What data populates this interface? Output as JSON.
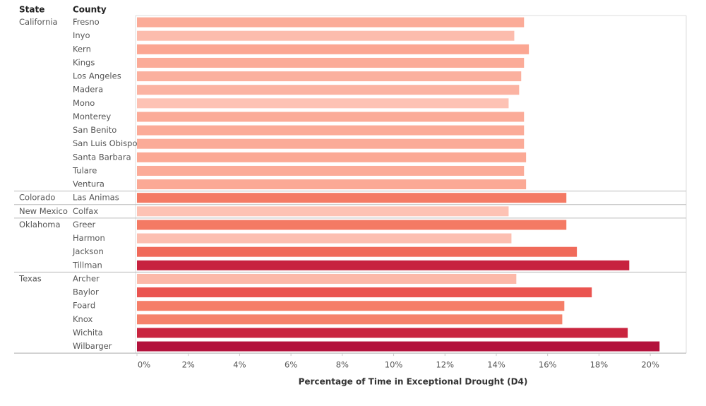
{
  "chart_data": {
    "type": "bar",
    "orientation": "horizontal",
    "row_headers": [
      "State",
      "County"
    ],
    "x_label": "Percentage of Time in Exceptional Drought (D4)",
    "xlim": [
      0,
      21.4
    ],
    "xticks": [
      {
        "value": 0,
        "label": "0%"
      },
      {
        "value": 2,
        "label": "2%"
      },
      {
        "value": 4,
        "label": "4%"
      },
      {
        "value": 6,
        "label": "6%"
      },
      {
        "value": 8,
        "label": "8%"
      },
      {
        "value": 10,
        "label": "10%"
      },
      {
        "value": 12,
        "label": "12%"
      },
      {
        "value": 14,
        "label": "14%"
      },
      {
        "value": 16,
        "label": "16%"
      },
      {
        "value": 18,
        "label": "18%"
      },
      {
        "value": 20,
        "label": "20%"
      }
    ],
    "groups": [
      {
        "name": "California",
        "categories": [
          "Fresno",
          "Inyo",
          "Kern",
          "Kings",
          "Los Angeles",
          "Madera",
          "Mono",
          "Monterey",
          "San Benito",
          "San Luis Obispo",
          "Santa Barbara",
          "Tulare",
          "Ventura"
        ],
        "values": [
          15.08,
          14.7,
          15.27,
          15.08,
          14.97,
          14.89,
          14.48,
          15.08,
          15.08,
          15.08,
          15.16,
          15.08,
          15.16
        ],
        "colors": [
          "#fbab98",
          "#fcbcad",
          "#fba692",
          "#fbab98",
          "#fbb09e",
          "#fbb3a2",
          "#fdc2b4",
          "#fbab98",
          "#fbab98",
          "#fbab98",
          "#fba995",
          "#fbab98",
          "#fba995"
        ]
      },
      {
        "name": "Colorado",
        "categories": [
          "Las Animas"
        ],
        "values": [
          16.73
        ],
        "colors": [
          "#f47a64"
        ]
      },
      {
        "name": "New Mexico",
        "categories": [
          "Colfax"
        ],
        "values": [
          14.48
        ],
        "colors": [
          "#fdc2b4"
        ]
      },
      {
        "name": "Oklahoma",
        "categories": [
          "Greer",
          "Harmon",
          "Jackson",
          "Tillman"
        ],
        "values": [
          16.73,
          14.59,
          17.14,
          19.18
        ],
        "colors": [
          "#f47a64",
          "#fcbfb1",
          "#f06a5a",
          "#c7223f"
        ]
      },
      {
        "name": "Texas",
        "categories": [
          "Archer",
          "Baylor",
          "Foard",
          "Knox",
          "Wichita",
          "Wilbarger"
        ],
        "values": [
          14.78,
          17.72,
          16.65,
          16.57,
          19.12,
          20.36
        ],
        "colors": [
          "#fcb9a9",
          "#ea5450",
          "#f57e68",
          "#f5826b",
          "#c9243f",
          "#b3123c"
        ]
      }
    ],
    "grid": false
  }
}
